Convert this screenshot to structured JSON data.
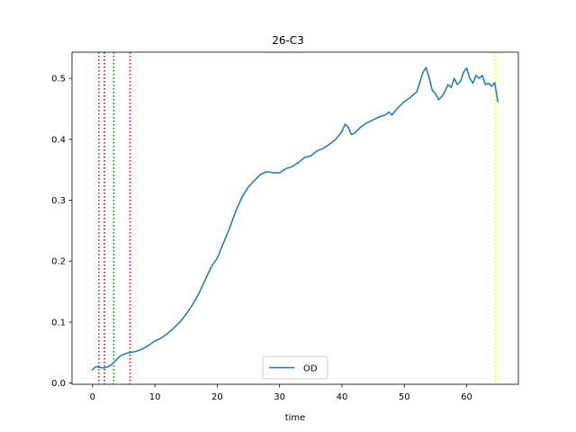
{
  "chart_data": {
    "type": "line",
    "title": "26-C3",
    "xlabel": "time",
    "ylabel": "",
    "xlim": [
      -3.3,
      68.3
    ],
    "ylim": [
      -0.002,
      0.543
    ],
    "xticks": [
      0,
      10,
      20,
      30,
      40,
      50,
      60
    ],
    "yticks": [
      0.0,
      0.1,
      0.2,
      0.3,
      0.4,
      0.5
    ],
    "grid": false,
    "legend": {
      "placement": "lower-center",
      "entries": [
        "OD"
      ]
    },
    "series": [
      {
        "name": "OD",
        "color": "#1f77b4",
        "x": [
          0,
          0.5,
          1,
          1.5,
          2,
          2.5,
          3,
          3.5,
          4,
          4.5,
          5,
          5.5,
          6,
          7,
          8,
          9,
          10,
          11,
          12,
          13,
          14,
          15,
          16,
          17,
          18,
          19,
          20,
          21,
          22,
          23,
          24,
          25,
          26,
          27,
          28,
          29,
          30,
          31,
          32,
          33,
          34,
          35,
          36,
          37,
          38,
          39,
          40,
          40.5,
          41,
          41.5,
          42,
          43,
          44,
          45,
          46,
          47,
          47.5,
          48,
          49,
          50,
          51,
          52,
          53,
          53.5,
          54,
          54.5,
          55,
          55.5,
          56,
          56.5,
          57,
          57.5,
          58,
          58.5,
          59,
          59.5,
          60,
          60.5,
          61,
          61.5,
          62,
          62.5,
          63,
          63.5,
          64,
          64.5,
          65
        ],
        "y": [
          0.022,
          0.027,
          0.026,
          0.025,
          0.025,
          0.027,
          0.03,
          0.035,
          0.04,
          0.045,
          0.047,
          0.049,
          0.05,
          0.052,
          0.056,
          0.062,
          0.069,
          0.074,
          0.081,
          0.09,
          0.1,
          0.113,
          0.128,
          0.146,
          0.168,
          0.19,
          0.205,
          0.23,
          0.255,
          0.283,
          0.306,
          0.322,
          0.333,
          0.343,
          0.347,
          0.345,
          0.345,
          0.352,
          0.355,
          0.362,
          0.37,
          0.373,
          0.381,
          0.385,
          0.392,
          0.4,
          0.413,
          0.425,
          0.42,
          0.408,
          0.41,
          0.42,
          0.427,
          0.432,
          0.437,
          0.44,
          0.445,
          0.44,
          0.452,
          0.462,
          0.469,
          0.478,
          0.51,
          0.518,
          0.5,
          0.48,
          0.475,
          0.465,
          0.47,
          0.478,
          0.49,
          0.485,
          0.5,
          0.49,
          0.495,
          0.51,
          0.517,
          0.5,
          0.492,
          0.505,
          0.5,
          0.505,
          0.49,
          0.492,
          0.487,
          0.493,
          0.462
        ]
      }
    ],
    "vlines": [
      {
        "x": 1.0,
        "color": "#ff0000",
        "style": "dotted"
      },
      {
        "x": 1.9,
        "color": "#800080",
        "style": "dotted"
      },
      {
        "x": 3.4,
        "color": "#008000",
        "style": "dotted"
      },
      {
        "x": 6.0,
        "color": "#ff0000",
        "style": "dotted"
      },
      {
        "x": 64.6,
        "color": "#ffff00",
        "style": "dotted"
      }
    ]
  }
}
